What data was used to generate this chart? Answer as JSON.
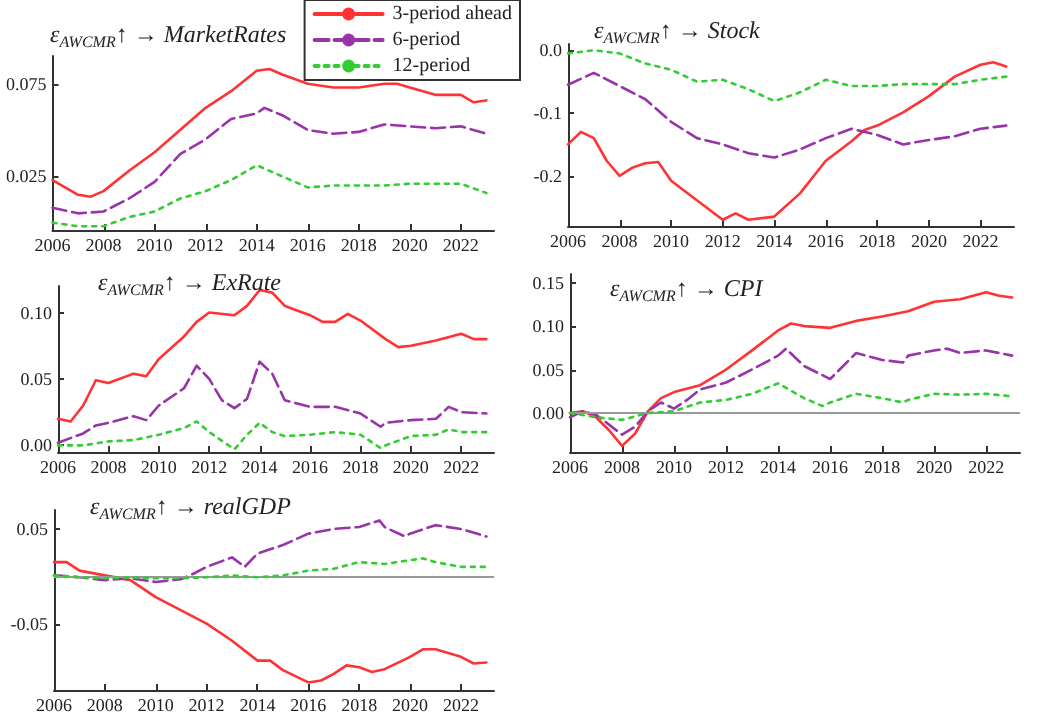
{
  "chart_data": [
    {
      "type": "line",
      "title": "ε$_{AWCMR}$↑ → MarketRates",
      "xlim": [
        2006,
        2023.3
      ],
      "xticks": [
        2006,
        2008,
        2010,
        2012,
        2014,
        2016,
        2018,
        2020,
        2022
      ],
      "ylim": [
        -0.004,
        0.09
      ],
      "yticks": [
        0.025,
        0.075
      ],
      "grid": false,
      "marker": "none",
      "legend": "top right",
      "series": [
        {
          "name": "3-period ahead",
          "color": "#ff3333",
          "line_style": "solid",
          "x": [
            2006,
            2007,
            2007.5,
            2008,
            2009,
            2010,
            2011,
            2012,
            2013,
            2014,
            2014.5,
            2015,
            2016,
            2017,
            2018,
            2019,
            2019.5,
            2020,
            2021,
            2022,
            2022.5,
            2023
          ],
          "values": [
            0.023,
            0.015,
            0.014,
            0.017,
            0.028,
            0.038,
            0.05,
            0.062,
            0.071,
            0.082,
            0.083,
            0.08,
            0.075,
            0.073,
            0.073,
            0.075,
            0.075,
            0.073,
            0.069,
            0.069,
            0.065,
            0.066
          ]
        },
        {
          "name": "6-period",
          "color": "#9933aa",
          "line_style": "dashed",
          "x": [
            2006,
            2007,
            2008,
            2009,
            2010,
            2011,
            2012,
            2013,
            2014,
            2014.3,
            2015,
            2016,
            2017,
            2018,
            2019,
            2020,
            2021,
            2022,
            2023
          ],
          "values": [
            0.008,
            0.005,
            0.006,
            0.013,
            0.022,
            0.037,
            0.045,
            0.056,
            0.059,
            0.062,
            0.058,
            0.05,
            0.048,
            0.049,
            0.053,
            0.052,
            0.051,
            0.052,
            0.048
          ]
        },
        {
          "name": "12-period",
          "color": "#33cc33",
          "line_style": "dotted",
          "x": [
            2006,
            2007,
            2008,
            2009,
            2010,
            2011,
            2012,
            2013,
            2014,
            2015,
            2016,
            2017,
            2018,
            2019,
            2020,
            2021,
            2022,
            2023
          ],
          "values": [
            0,
            -0.002,
            -0.002,
            0.003,
            0.006,
            0.013,
            0.017,
            0.023,
            0.031,
            0.025,
            0.019,
            0.02,
            0.02,
            0.02,
            0.021,
            0.021,
            0.021,
            0.016
          ]
        }
      ]
    },
    {
      "type": "line",
      "title": "ε$_{AWCMR}$↑ → Stock",
      "xlim": [
        2006,
        2023.3
      ],
      "xticks": [
        2006,
        2008,
        2010,
        2012,
        2014,
        2016,
        2018,
        2020,
        2022
      ],
      "ylim": [
        -0.28,
        0.01
      ],
      "yticks": [
        {
          "value": 0,
          "label": "0.0"
        },
        -0.1,
        -0.2
      ],
      "grid": false,
      "marker": "none",
      "series": [
        {
          "color": "#ff3333",
          "line_style": "solid",
          "x": [
            2006,
            2006.5,
            2007,
            2007.5,
            2008,
            2008.5,
            2009,
            2009.5,
            2010,
            2011,
            2012,
            2012.5,
            2013,
            2014,
            2015,
            2016,
            2017,
            2017.5,
            2018,
            2019,
            2020,
            2021,
            2022,
            2022.5,
            2023
          ],
          "values": [
            -0.15,
            -0.13,
            -0.14,
            -0.176,
            -0.2,
            -0.187,
            -0.18,
            -0.178,
            -0.208,
            -0.239,
            -0.27,
            -0.26,
            -0.27,
            -0.265,
            -0.228,
            -0.176,
            -0.145,
            -0.127,
            -0.12,
            -0.099,
            -0.073,
            -0.042,
            -0.023,
            -0.019,
            -0.026
          ]
        },
        {
          "color": "#9933aa",
          "line_style": "dashed",
          "x": [
            2006,
            2007,
            2008,
            2009,
            2010,
            2011,
            2012,
            2013,
            2014,
            2015,
            2016,
            2017,
            2018,
            2019,
            2020,
            2021,
            2022,
            2023
          ],
          "values": [
            -0.055,
            -0.036,
            -0.057,
            -0.078,
            -0.114,
            -0.14,
            -0.15,
            -0.164,
            -0.171,
            -0.158,
            -0.14,
            -0.125,
            -0.135,
            -0.15,
            -0.143,
            -0.137,
            -0.125,
            -0.12
          ]
        },
        {
          "color": "#33cc33",
          "line_style": "dotted",
          "x": [
            2006,
            2007,
            2008,
            2009,
            2010,
            2011,
            2012,
            2013,
            2014,
            2015,
            2016,
            2017,
            2018,
            2019,
            2020,
            2021,
            2022,
            2023
          ],
          "values": [
            -0.005,
            0,
            -0.005,
            -0.021,
            -0.031,
            -0.05,
            -0.047,
            -0.062,
            -0.081,
            -0.067,
            -0.047,
            -0.057,
            -0.057,
            -0.054,
            -0.054,
            -0.054,
            -0.047,
            -0.042
          ]
        }
      ]
    },
    {
      "type": "line",
      "title": "ε$_{AWCMR}$↑ → ExRate",
      "xlim": [
        2006,
        2023.3
      ],
      "xticks": [
        2006,
        2008,
        2010,
        2012,
        2014,
        2016,
        2018,
        2020,
        2022
      ],
      "ylim": [
        -0.005,
        0.12
      ],
      "yticks": [
        {
          "value": 0,
          "label": "0.00"
        },
        {
          "value": 0.05,
          "label": "0.05"
        },
        {
          "value": 0.1,
          "label": "0.10"
        }
      ],
      "grid": false,
      "marker": "none",
      "series": [
        {
          "color": "#ff3333",
          "line_style": "solid",
          "x": [
            2006,
            2006.5,
            2007,
            2007.5,
            2008,
            2009,
            2009.5,
            2010,
            2011,
            2011.5,
            2012,
            2013,
            2013.5,
            2014,
            2014.5,
            2015,
            2016,
            2016.5,
            2017,
            2017.5,
            2018,
            2019,
            2019.5,
            2020,
            2021,
            2022,
            2022.5,
            2023
          ],
          "values": [
            0.02,
            0.018,
            0.03,
            0.049,
            0.047,
            0.054,
            0.052,
            0.065,
            0.082,
            0.093,
            0.1,
            0.098,
            0.105,
            0.117,
            0.115,
            0.105,
            0.098,
            0.093,
            0.093,
            0.099,
            0.094,
            0.08,
            0.074,
            0.075,
            0.079,
            0.084,
            0.08,
            0.08
          ]
        },
        {
          "color": "#9933aa",
          "line_style": "dashed",
          "x": [
            2006,
            2007,
            2007.5,
            2008,
            2009,
            2009.5,
            2010,
            2011,
            2011.5,
            2012,
            2012.5,
            2013,
            2013.5,
            2014,
            2014.5,
            2015,
            2016,
            2017,
            2018,
            2018.8,
            2019,
            2020,
            2021,
            2021.5,
            2022,
            2023
          ],
          "values": [
            0.002,
            0.009,
            0.015,
            0.017,
            0.022,
            0.019,
            0.03,
            0.043,
            0.06,
            0.05,
            0.034,
            0.028,
            0.035,
            0.063,
            0.054,
            0.034,
            0.029,
            0.029,
            0.024,
            0.014,
            0.017,
            0.019,
            0.02,
            0.029,
            0.025,
            0.024
          ]
        },
        {
          "color": "#33cc33",
          "line_style": "dotted",
          "x": [
            2006,
            2007,
            2008,
            2009,
            2010,
            2011,
            2011.5,
            2012,
            2013,
            2013.5,
            2014,
            2014.5,
            2015,
            2016,
            2017,
            2018,
            2018.8,
            2019,
            2020,
            2021,
            2021.5,
            2022,
            2023
          ],
          "values": [
            0,
            0,
            0.003,
            0.004,
            0.008,
            0.013,
            0.018,
            0.01,
            -0.003,
            0.008,
            0.017,
            0.01,
            0.007,
            0.008,
            0.01,
            0.008,
            -0.002,
            0,
            0.007,
            0.008,
            0.012,
            0.01,
            0.01
          ]
        }
      ]
    },
    {
      "type": "line",
      "title": "ε$_{AWCMR}$↑ → CPI",
      "xlim": [
        2006,
        2023.3
      ],
      "xticks": [
        2006,
        2008,
        2010,
        2012,
        2014,
        2016,
        2018,
        2020,
        2022
      ],
      "ylim": [
        -0.045,
        0.16
      ],
      "yticks": [
        {
          "value": 0,
          "label": "0.00"
        },
        {
          "value": 0.05,
          "label": "0.05"
        },
        {
          "value": 0.1,
          "label": "0.10"
        },
        {
          "value": 0.15,
          "label": "0.15"
        }
      ],
      "grid": false,
      "marker": "none",
      "ref_lines": [
        {
          "axis": "y",
          "value": 0,
          "color": "#999999"
        }
      ],
      "series": [
        {
          "color": "#ff3333",
          "line_style": "solid",
          "x": [
            2006,
            2006.5,
            2007,
            2007.5,
            2008,
            2008.5,
            2009,
            2009.5,
            2010,
            2011,
            2012,
            2013,
            2014,
            2014.5,
            2015,
            2016,
            2017,
            2018,
            2019,
            2020,
            2021,
            2022,
            2022.5,
            2023
          ],
          "values": [
            0,
            0.002,
            -0.005,
            -0.02,
            -0.038,
            -0.024,
            0.002,
            0.017,
            0.024,
            0.032,
            0.05,
            0.072,
            0.095,
            0.103,
            0.1,
            0.098,
            0.106,
            0.111,
            0.117,
            0.128,
            0.131,
            0.139,
            0.135,
            0.133
          ]
        },
        {
          "color": "#9933aa",
          "line_style": "dashed",
          "x": [
            2006,
            2006.5,
            2007,
            2008,
            2008.5,
            2009,
            2009.5,
            2010,
            2010.5,
            2011,
            2012,
            2013,
            2014,
            2014.3,
            2015,
            2016,
            2017,
            2018,
            2018.8,
            2019,
            2020,
            2020.5,
            2021,
            2022,
            2023
          ],
          "values": [
            -0.005,
            0.002,
            -0.002,
            -0.025,
            -0.016,
            0.002,
            0.012,
            0.005,
            0.015,
            0.027,
            0.035,
            0.05,
            0.066,
            0.074,
            0.054,
            0.039,
            0.069,
            0.061,
            0.058,
            0.066,
            0.072,
            0.074,
            0.069,
            0.072,
            0.066
          ]
        },
        {
          "color": "#33cc33",
          "line_style": "dotted",
          "x": [
            2006,
            2007,
            2008,
            2009,
            2010,
            2011,
            2012,
            2013,
            2014,
            2015,
            2015.7,
            2016,
            2017,
            2018,
            2018.8,
            2019,
            2020,
            2021,
            2022,
            2023
          ],
          "values": [
            0,
            -0.005,
            -0.008,
            0,
            0.002,
            0.012,
            0.015,
            0.022,
            0.034,
            0.017,
            0.008,
            0.012,
            0.022,
            0.017,
            0.012,
            0.015,
            0.022,
            0.021,
            0.022,
            0.019
          ]
        }
      ]
    },
    {
      "type": "line",
      "title": "ε$_{AWCMR}$↑ → realGDP",
      "xlim": [
        2006,
        2023.3
      ],
      "xticks": [
        2006,
        2008,
        2010,
        2012,
        2014,
        2016,
        2018,
        2020,
        2022
      ],
      "ylim": [
        -0.12,
        0.07
      ],
      "yticks": [
        0.05,
        -0.05
      ],
      "grid": false,
      "marker": "none",
      "ref_lines": [
        {
          "axis": "y",
          "value": 0,
          "color": "#999999"
        }
      ],
      "series": [
        {
          "color": "#ff3333",
          "line_style": "solid",
          "x": [
            2006,
            2006.5,
            2007,
            2008,
            2009,
            2010,
            2011,
            2012,
            2013,
            2014,
            2014.5,
            2015,
            2016,
            2016.5,
            2017,
            2017.5,
            2018,
            2018.5,
            2019,
            2020,
            2020.5,
            2021,
            2022,
            2022.5,
            2023
          ],
          "values": [
            0.015,
            0.015,
            0.006,
            0.001,
            -0.004,
            -0.022,
            -0.036,
            -0.05,
            -0.068,
            -0.089,
            -0.089,
            -0.099,
            -0.112,
            -0.11,
            -0.103,
            -0.094,
            -0.096,
            -0.101,
            -0.098,
            -0.085,
            -0.077,
            -0.077,
            -0.085,
            -0.092,
            -0.091
          ]
        },
        {
          "color": "#9933aa",
          "line_style": "dashed",
          "x": [
            2006,
            2007,
            2008,
            2009,
            2010,
            2011,
            2011.5,
            2012,
            2013,
            2013.5,
            2014,
            2015,
            2016,
            2017,
            2018,
            2018.8,
            2019,
            2019.8,
            2020,
            2021,
            2022,
            2023
          ],
          "values": [
            0.001,
            -0.001,
            -0.004,
            -0.002,
            -0.006,
            -0.003,
            0.003,
            0.01,
            0.02,
            0.01,
            0.024,
            0.033,
            0.045,
            0.05,
            0.052,
            0.059,
            0.052,
            0.042,
            0.045,
            0.054,
            0.05,
            0.042
          ]
        },
        {
          "color": "#33cc33",
          "line_style": "dotted",
          "x": [
            2006,
            2007,
            2008,
            2009,
            2010,
            2011,
            2012,
            2013,
            2014,
            2015,
            2016,
            2017,
            2018,
            2019,
            2020,
            2020.5,
            2021,
            2022,
            2023
          ],
          "values": [
            0.001,
            -0.001,
            -0.002,
            -0.001,
            -0.002,
            -0.002,
            -0.001,
            0.001,
            -0.001,
            0.001,
            0.006,
            0.008,
            0.015,
            0.013,
            0.017,
            0.019,
            0.015,
            0.01,
            0.01
          ]
        }
      ]
    }
  ]
}
